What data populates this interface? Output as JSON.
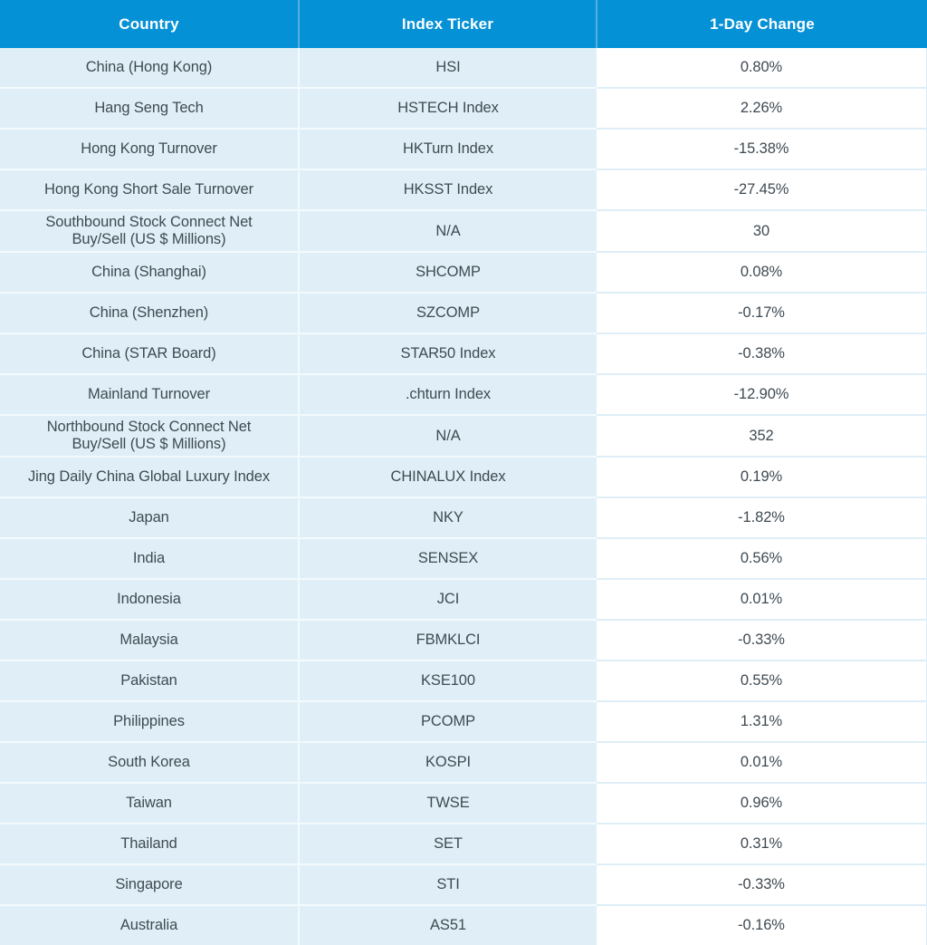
{
  "table": {
    "columns": [
      "Country",
      "Index Ticker",
      "1-Day Change"
    ],
    "rows": [
      {
        "country": "China (Hong Kong)",
        "ticker": "HSI",
        "change": "0.80%"
      },
      {
        "country": "Hang Seng Tech",
        "ticker": "HSTECH Index",
        "change": "2.26%"
      },
      {
        "country": "Hong Kong Turnover",
        "ticker": "HKTurn Index",
        "change": "-15.38%"
      },
      {
        "country": "Hong Kong Short Sale Turnover",
        "ticker": "HKSST Index",
        "change": "-27.45%"
      },
      {
        "country": "Southbound Stock Connect Net\nBuy/Sell (US $ Millions)",
        "ticker": "N/A",
        "change": "30"
      },
      {
        "country": "China (Shanghai)",
        "ticker": "SHCOMP",
        "change": "0.08%"
      },
      {
        "country": "China (Shenzhen)",
        "ticker": "SZCOMP",
        "change": "-0.17%"
      },
      {
        "country": "China (STAR Board)",
        "ticker": "STAR50 Index",
        "change": "-0.38%"
      },
      {
        "country": "Mainland Turnover",
        "ticker": ".chturn Index",
        "change": "-12.90%"
      },
      {
        "country": "Northbound Stock Connect Net\nBuy/Sell (US $ Millions)",
        "ticker": "N/A",
        "change": "352"
      },
      {
        "country": "Jing Daily China Global Luxury Index",
        "ticker": "CHINALUX Index",
        "change": "0.19%"
      },
      {
        "country": "Japan",
        "ticker": "NKY",
        "change": "-1.82%"
      },
      {
        "country": "India",
        "ticker": "SENSEX",
        "change": "0.56%"
      },
      {
        "country": "Indonesia",
        "ticker": "JCI",
        "change": "0.01%"
      },
      {
        "country": "Malaysia",
        "ticker": "FBMKLCI",
        "change": "-0.33%"
      },
      {
        "country": "Pakistan",
        "ticker": "KSE100",
        "change": "0.55%"
      },
      {
        "country": "Philippines",
        "ticker": "PCOMP",
        "change": "1.31%"
      },
      {
        "country": "South Korea",
        "ticker": "KOSPI",
        "change": "0.01%"
      },
      {
        "country": "Taiwan",
        "ticker": "TWSE",
        "change": "0.96%"
      },
      {
        "country": "Thailand",
        "ticker": "SET",
        "change": "0.31%"
      },
      {
        "country": "Singapore",
        "ticker": "STI",
        "change": "-0.33%"
      },
      {
        "country": "Australia",
        "ticker": "AS51",
        "change": "-0.16%"
      }
    ]
  },
  "colors": {
    "header_bg": "#0591d5",
    "header_text": "#ffffff",
    "row_bg": "#e0eff7",
    "change_column_bg": "#ffffff",
    "cell_text": "#3f4a52",
    "page_background": "#000000"
  },
  "chart_data": {
    "type": "table",
    "columns": [
      "Country",
      "Index Ticker",
      "1-Day Change"
    ],
    "rows": [
      [
        "China (Hong Kong)",
        "HSI",
        "0.80%"
      ],
      [
        "Hang Seng Tech",
        "HSTECH Index",
        "2.26%"
      ],
      [
        "Hong Kong Turnover",
        "HKTurn Index",
        "-15.38%"
      ],
      [
        "Hong Kong Short Sale Turnover",
        "HKSST Index",
        "-27.45%"
      ],
      [
        "Southbound Stock Connect Net Buy/Sell (US $ Millions)",
        "N/A",
        "30"
      ],
      [
        "China (Shanghai)",
        "SHCOMP",
        "0.08%"
      ],
      [
        "China (Shenzhen)",
        "SZCOMP",
        "-0.17%"
      ],
      [
        "China (STAR Board)",
        "STAR50 Index",
        "-0.38%"
      ],
      [
        "Mainland Turnover",
        ".chturn Index",
        "-12.90%"
      ],
      [
        "Northbound Stock Connect Net Buy/Sell (US $ Millions)",
        "N/A",
        "352"
      ],
      [
        "Jing Daily China Global Luxury Index",
        "CHINALUX Index",
        "0.19%"
      ],
      [
        "Japan",
        "NKY",
        "-1.82%"
      ],
      [
        "India",
        "SENSEX",
        "0.56%"
      ],
      [
        "Indonesia",
        "JCI",
        "0.01%"
      ],
      [
        "Malaysia",
        "FBMKLCI",
        "-0.33%"
      ],
      [
        "Pakistan",
        "KSE100",
        "0.55%"
      ],
      [
        "Philippines",
        "PCOMP",
        "1.31%"
      ],
      [
        "South Korea",
        "KOSPI",
        "0.01%"
      ],
      [
        "Taiwan",
        "TWSE",
        "0.96%"
      ],
      [
        "Thailand",
        "SET",
        "0.31%"
      ],
      [
        "Singapore",
        "STI",
        "-0.33%"
      ],
      [
        "Australia",
        "AS51",
        "-0.16%"
      ]
    ]
  }
}
